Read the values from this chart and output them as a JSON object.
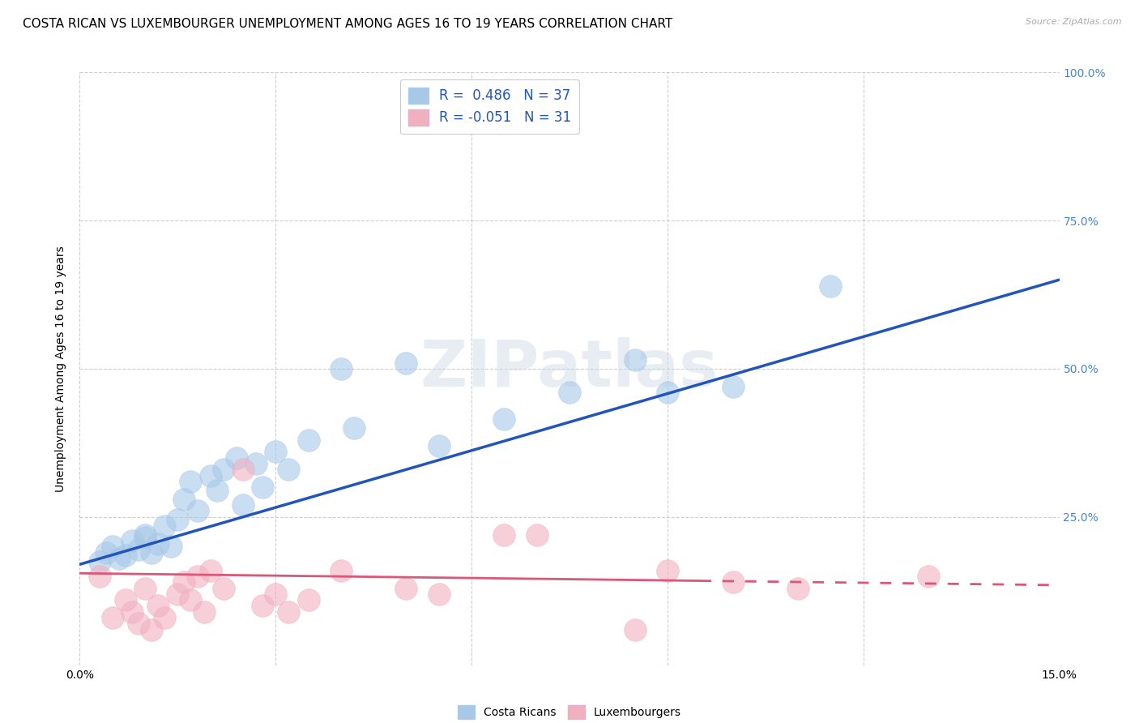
{
  "title": "COSTA RICAN VS LUXEMBOURGER UNEMPLOYMENT AMONG AGES 16 TO 19 YEARS CORRELATION CHART",
  "source": "Source: ZipAtlas.com",
  "ylabel": "Unemployment Among Ages 16 to 19 years",
  "xlim": [
    0.0,
    0.15
  ],
  "ylim": [
    0.0,
    1.0
  ],
  "xticks": [
    0.0,
    0.03,
    0.06,
    0.09,
    0.12,
    0.15
  ],
  "xtick_labels": [
    "0.0%",
    "",
    "",
    "",
    "",
    "15.0%"
  ],
  "yticks": [
    0.0,
    0.25,
    0.5,
    0.75,
    1.0
  ],
  "ytick_labels": [
    "",
    "25.0%",
    "50.0%",
    "75.0%",
    "100.0%"
  ],
  "blue_color": "#a8c8e8",
  "pink_color": "#f0b0c0",
  "blue_line_color": "#2255bb",
  "pink_line_color": "#dd5577",
  "blue_R": 0.486,
  "blue_N": 37,
  "pink_R": -0.051,
  "pink_N": 31,
  "legend_label_blue": "Costa Ricans",
  "legend_label_pink": "Luxembourgers",
  "watermark": "ZIPatlas",
  "blue_scatter_x": [
    0.003,
    0.004,
    0.005,
    0.006,
    0.007,
    0.008,
    0.009,
    0.01,
    0.01,
    0.011,
    0.012,
    0.013,
    0.014,
    0.015,
    0.016,
    0.017,
    0.018,
    0.02,
    0.021,
    0.022,
    0.024,
    0.025,
    0.027,
    0.028,
    0.03,
    0.032,
    0.035,
    0.04,
    0.042,
    0.05,
    0.055,
    0.065,
    0.075,
    0.085,
    0.09,
    0.1,
    0.115
  ],
  "blue_scatter_y": [
    0.175,
    0.19,
    0.2,
    0.18,
    0.185,
    0.21,
    0.195,
    0.22,
    0.215,
    0.19,
    0.205,
    0.235,
    0.2,
    0.245,
    0.28,
    0.31,
    0.26,
    0.32,
    0.295,
    0.33,
    0.35,
    0.27,
    0.34,
    0.3,
    0.36,
    0.33,
    0.38,
    0.5,
    0.4,
    0.51,
    0.37,
    0.415,
    0.46,
    0.515,
    0.46,
    0.47,
    0.64
  ],
  "pink_scatter_x": [
    0.003,
    0.005,
    0.007,
    0.008,
    0.009,
    0.01,
    0.011,
    0.012,
    0.013,
    0.015,
    0.016,
    0.017,
    0.018,
    0.019,
    0.02,
    0.022,
    0.025,
    0.028,
    0.03,
    0.032,
    0.035,
    0.04,
    0.05,
    0.055,
    0.065,
    0.07,
    0.085,
    0.09,
    0.1,
    0.11,
    0.13
  ],
  "pink_scatter_y": [
    0.15,
    0.08,
    0.11,
    0.09,
    0.07,
    0.13,
    0.06,
    0.1,
    0.08,
    0.12,
    0.14,
    0.11,
    0.15,
    0.09,
    0.16,
    0.13,
    0.33,
    0.1,
    0.12,
    0.09,
    0.11,
    0.16,
    0.13,
    0.12,
    0.22,
    0.22,
    0.06,
    0.16,
    0.14,
    0.13,
    0.15
  ],
  "background_color": "#ffffff",
  "grid_color": "#bbbbbb",
  "title_fontsize": 11,
  "axis_fontsize": 10,
  "tick_fontsize": 10,
  "right_tick_color": "#4488cc"
}
